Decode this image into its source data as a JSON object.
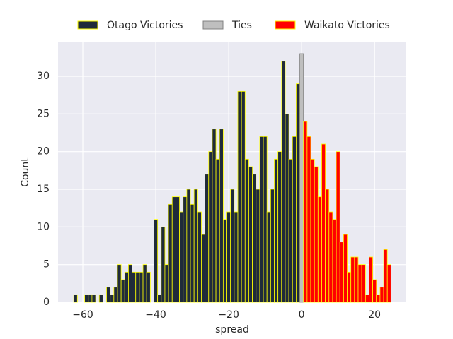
{
  "chart_data": {
    "type": "histogram",
    "xlabel": "spread",
    "ylabel": "Count",
    "xlim": [
      -66.8,
      28.7
    ],
    "ylim": [
      0,
      34.5
    ],
    "xticks": [
      {
        "value": -60,
        "label": "−60"
      },
      {
        "value": -40,
        "label": "−40"
      },
      {
        "value": -20,
        "label": "−20"
      },
      0,
      20
    ],
    "yticks": [
      0,
      5,
      10,
      15,
      20,
      25,
      30
    ],
    "grid": true,
    "legend": "top",
    "series": [
      {
        "name": "Otago Victories",
        "color": "#1f2a3a",
        "edgecolor": "#ffff00",
        "bins": [
          -62.5,
          -61.5,
          -60.5,
          -59.5,
          -58.5,
          -57.5,
          -56.5,
          -55.5,
          -54.5,
          -53.5,
          -52.5,
          -51.5,
          -50.5,
          -49.5,
          -48.5,
          -47.5,
          -46.5,
          -45.5,
          -44.5,
          -43.5,
          -42.5,
          -41.5,
          -40.5,
          -39.5,
          -38.5,
          -37.5,
          -36.5,
          -35.5,
          -34.5,
          -33.5,
          -32.5,
          -31.5,
          -30.5,
          -29.5,
          -28.5,
          -27.5,
          -26.5,
          -25.5,
          -24.5,
          -23.5,
          -22.5,
          -21.5,
          -20.5,
          -19.5,
          -18.5,
          -17.5,
          -16.5,
          -15.5,
          -14.5,
          -13.5,
          -12.5,
          -11.5,
          -10.5,
          -9.5,
          -8.5,
          -7.5,
          -6.5,
          -5.5,
          -4.5,
          -3.5,
          -2.5,
          -1.5,
          -0.5
        ],
        "values": [
          1,
          0,
          0,
          1,
          1,
          1,
          0,
          1,
          0,
          2,
          1,
          2,
          5,
          3,
          4,
          5,
          4,
          4,
          4,
          5,
          4,
          0,
          11,
          1,
          10,
          5,
          13,
          14,
          14,
          12,
          14,
          15,
          13,
          15,
          12,
          9,
          17,
          20,
          23,
          19,
          23,
          11,
          12,
          15,
          12,
          28,
          28,
          19,
          18,
          17,
          15,
          22,
          22,
          12,
          15,
          19,
          20,
          32,
          25,
          19,
          22,
          29
        ]
      },
      {
        "name": "Ties",
        "color": "#bfbfbf",
        "edgecolor": "#808080",
        "bins": [
          -0.5,
          0.5
        ],
        "values": [
          33
        ]
      },
      {
        "name": "Waikato Victories",
        "color": "#ff0000",
        "edgecolor": "#ffff00",
        "bins": [
          0.5,
          1.5,
          2.5,
          3.5,
          4.5,
          5.5,
          6.5,
          7.5,
          8.5,
          9.5,
          10.5,
          11.5,
          12.5,
          13.5,
          14.5,
          15.5,
          16.5,
          17.5,
          18.5,
          19.5,
          20.5,
          21.5,
          22.5,
          23.5,
          24.5
        ],
        "values": [
          24,
          22,
          19,
          18,
          14,
          21,
          15,
          12,
          11,
          20,
          8,
          9,
          4,
          6,
          6,
          5,
          5,
          1,
          6,
          3,
          1,
          2,
          7,
          5
        ]
      }
    ]
  }
}
